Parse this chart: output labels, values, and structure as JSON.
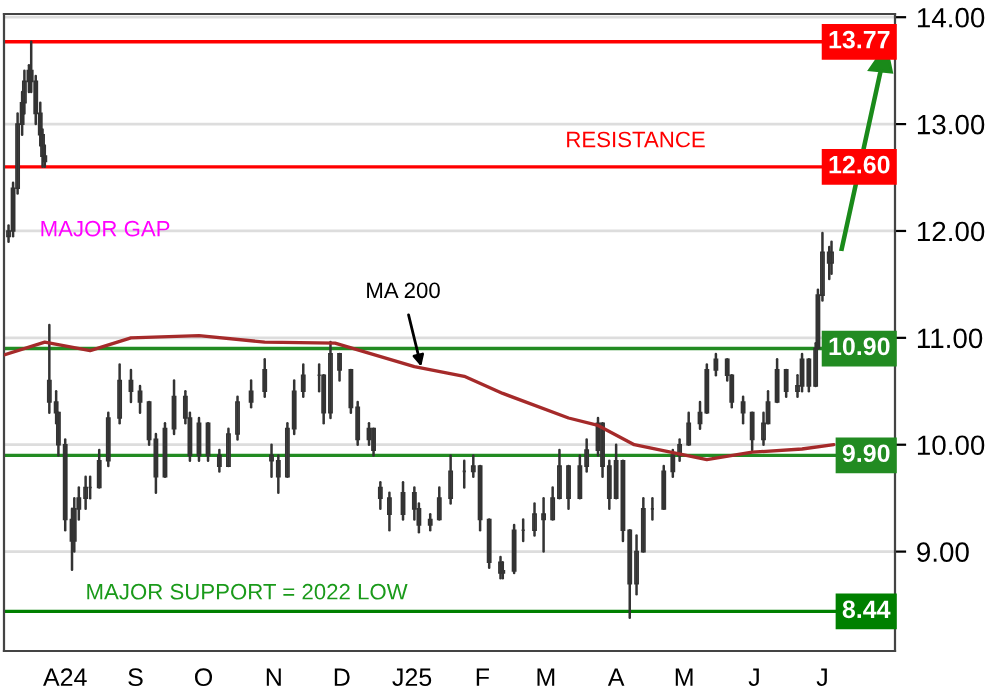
{
  "chart_data": {
    "type": "candlestick",
    "color": "#333333",
    "x": [
      "2024-07-07",
      "2024-07-09",
      "2024-07-11",
      "2024-07-13",
      "2024-07-14",
      "2024-07-16",
      "2024-07-17",
      "2024-07-19",
      "2024-07-21",
      "2024-07-22",
      "2024-07-23",
      "2024-07-25",
      "2024-07-28",
      "2024-07-29",
      "2024-08-01",
      "2024-08-04",
      "2024-08-05",
      "2024-08-07",
      "2024-08-10",
      "2024-08-12",
      "2024-08-16",
      "2024-08-20",
      "2024-08-25",
      "2024-08-30",
      "2024-09-03",
      "2024-09-07",
      "2024-09-10",
      "2024-09-14",
      "2024-09-18",
      "2024-09-23",
      "2024-09-25",
      "2024-09-29",
      "2024-10-03",
      "2024-10-08",
      "2024-10-12",
      "2024-10-16",
      "2024-10-22",
      "2024-10-28",
      "2024-10-31",
      "2024-11-03",
      "2024-11-07",
      "2024-11-10",
      "2024-11-14",
      "2024-11-21",
      "2024-11-23",
      "2024-11-26",
      "2024-11-30",
      "2024-12-05",
      "2024-12-08",
      "2024-12-13",
      "2024-12-15",
      "2024-12-18",
      "2024-12-22",
      "2024-12-28",
      "2025-01-02",
      "2025-01-04",
      "2025-01-09",
      "2025-01-13",
      "2025-01-18",
      "2025-01-24",
      "2025-01-28",
      "2025-01-31",
      "2025-02-04",
      "2025-02-09",
      "2025-02-10",
      "2025-02-15",
      "2025-02-19",
      "2025-02-24",
      "2025-02-28",
      "2025-03-04",
      "2025-03-07",
      "2025-03-11",
      "2025-03-16",
      "2025-03-19",
      "2025-03-24",
      "2025-03-26",
      "2025-03-29",
      "2025-04-01",
      "2025-04-04",
      "2025-04-07",
      "2025-04-10",
      "2025-04-13",
      "2025-04-17",
      "2025-04-22",
      "2025-04-26",
      "2025-04-29",
      "2025-05-03",
      "2025-05-08",
      "2025-05-11",
      "2025-05-15",
      "2025-05-20",
      "2025-05-22",
      "2025-05-27",
      "2025-05-31",
      "2025-06-05",
      "2025-06-07",
      "2025-06-11",
      "2025-06-15",
      "2025-06-20",
      "2025-06-22",
      "2025-06-25",
      "2025-06-28",
      "2025-06-29",
      "2025-07-01",
      "2025-07-04",
      "2025-07-05"
    ],
    "ohlc": [
      [
        11.95,
        12.05,
        11.9,
        12.0
      ],
      [
        12.0,
        12.45,
        11.95,
        12.4
      ],
      [
        12.4,
        13.1,
        12.35,
        13.0
      ],
      [
        13.0,
        13.3,
        12.9,
        13.2
      ],
      [
        13.2,
        13.5,
        13.1,
        13.4
      ],
      [
        13.4,
        13.55,
        13.3,
        13.5
      ],
      [
        13.5,
        13.77,
        13.3,
        13.4
      ],
      [
        13.4,
        13.45,
        13.0,
        13.1
      ],
      [
        13.1,
        13.2,
        12.8,
        12.9
      ],
      [
        12.9,
        12.95,
        12.6,
        12.7
      ],
      [
        12.7,
        12.8,
        12.6,
        12.65
      ],
      [
        10.6,
        11.12,
        10.3,
        10.4
      ],
      [
        10.4,
        10.5,
        10.2,
        10.3
      ],
      [
        10.3,
        10.3,
        9.9,
        10.0
      ],
      [
        10.0,
        10.05,
        9.2,
        9.3
      ],
      [
        9.3,
        9.4,
        8.83,
        9.1
      ],
      [
        9.1,
        9.5,
        9.0,
        9.4
      ],
      [
        9.4,
        9.6,
        9.3,
        9.5
      ],
      [
        9.5,
        9.7,
        9.4,
        9.6
      ],
      [
        9.6,
        9.7,
        9.5,
        9.6
      ],
      [
        9.6,
        9.95,
        9.6,
        9.85
      ],
      [
        9.85,
        10.3,
        9.8,
        10.25
      ],
      [
        10.25,
        10.75,
        10.2,
        10.6
      ],
      [
        10.6,
        10.7,
        10.4,
        10.5
      ],
      [
        10.5,
        10.55,
        10.3,
        10.4
      ],
      [
        10.4,
        10.4,
        10.0,
        10.05
      ],
      [
        10.05,
        10.1,
        9.55,
        9.7
      ],
      [
        9.7,
        10.2,
        9.7,
        10.15
      ],
      [
        10.15,
        10.6,
        10.1,
        10.45
      ],
      [
        10.45,
        10.5,
        10.2,
        10.25
      ],
      [
        10.25,
        10.3,
        9.85,
        9.9
      ],
      [
        9.9,
        10.25,
        9.85,
        10.2
      ],
      [
        10.2,
        10.2,
        9.85,
        9.9
      ],
      [
        9.9,
        9.95,
        9.75,
        9.8
      ],
      [
        9.8,
        10.15,
        9.8,
        10.1
      ],
      [
        10.1,
        10.45,
        10.05,
        10.4
      ],
      [
        10.4,
        10.6,
        10.35,
        10.5
      ],
      [
        10.5,
        10.8,
        10.45,
        10.7
      ],
      [
        9.9,
        10.0,
        9.7,
        9.85
      ],
      [
        9.85,
        9.9,
        9.55,
        9.7
      ],
      [
        9.7,
        10.2,
        9.7,
        10.15
      ],
      [
        10.15,
        10.6,
        10.1,
        10.5
      ],
      [
        10.5,
        10.75,
        10.45,
        10.65
      ],
      [
        10.65,
        10.75,
        10.5,
        10.65
      ],
      [
        10.65,
        10.65,
        10.2,
        10.3
      ],
      [
        10.3,
        10.96,
        10.25,
        10.85
      ],
      [
        10.85,
        10.85,
        10.6,
        10.7
      ],
      [
        10.7,
        10.7,
        10.3,
        10.35
      ],
      [
        10.35,
        10.4,
        10.0,
        10.05
      ],
      [
        10.05,
        10.2,
        10.0,
        10.15
      ],
      [
        10.15,
        10.15,
        9.9,
        9.95
      ],
      [
        9.6,
        9.65,
        9.4,
        9.5
      ],
      [
        9.5,
        9.55,
        9.2,
        9.35
      ],
      [
        9.35,
        9.65,
        9.3,
        9.55
      ],
      [
        9.55,
        9.6,
        9.3,
        9.4
      ],
      [
        9.4,
        9.45,
        9.18,
        9.25
      ],
      [
        9.25,
        9.35,
        9.2,
        9.3
      ],
      [
        9.3,
        9.6,
        9.3,
        9.5
      ],
      [
        9.5,
        9.9,
        9.45,
        9.75
      ],
      [
        9.75,
        9.85,
        9.6,
        9.75
      ],
      [
        9.75,
        9.9,
        9.7,
        9.8
      ],
      [
        9.8,
        9.8,
        9.2,
        9.3
      ],
      [
        9.3,
        9.3,
        8.85,
        8.9
      ],
      [
        8.9,
        8.95,
        8.75,
        8.8
      ],
      [
        8.8,
        8.9,
        8.75,
        8.82
      ],
      [
        8.82,
        9.25,
        8.8,
        9.2
      ],
      [
        9.2,
        9.3,
        9.1,
        9.2
      ],
      [
        9.2,
        9.45,
        9.15,
        9.35
      ],
      [
        9.35,
        9.5,
        9.0,
        9.3
      ],
      [
        9.3,
        9.6,
        9.3,
        9.5
      ],
      [
        9.5,
        9.95,
        9.5,
        9.8
      ],
      [
        9.8,
        9.8,
        9.4,
        9.5
      ],
      [
        9.5,
        9.9,
        9.5,
        9.8
      ],
      [
        9.8,
        10.05,
        9.75,
        9.95
      ],
      [
        9.95,
        10.25,
        9.9,
        10.2
      ],
      [
        10.2,
        10.2,
        9.7,
        9.8
      ],
      [
        9.8,
        9.85,
        9.4,
        9.5
      ],
      [
        9.5,
        10.0,
        9.5,
        9.85
      ],
      [
        9.85,
        9.85,
        9.1,
        9.2
      ],
      [
        9.2,
        9.2,
        8.38,
        8.7
      ],
      [
        8.7,
        9.15,
        8.6,
        9.0
      ],
      [
        9.0,
        9.5,
        9.0,
        9.4
      ],
      [
        9.4,
        9.5,
        9.3,
        9.4
      ],
      [
        9.4,
        9.8,
        9.4,
        9.75
      ],
      [
        9.75,
        9.95,
        9.7,
        9.9
      ],
      [
        9.9,
        10.05,
        9.85,
        10.0
      ],
      [
        10.0,
        10.3,
        10.0,
        10.2
      ],
      [
        10.2,
        10.4,
        10.15,
        10.3
      ],
      [
        10.3,
        10.75,
        10.3,
        10.7
      ],
      [
        10.7,
        10.85,
        10.65,
        10.8
      ],
      [
        10.8,
        10.8,
        10.6,
        10.65
      ],
      [
        10.65,
        10.65,
        10.35,
        10.4
      ],
      [
        10.4,
        10.45,
        10.2,
        10.3
      ],
      [
        10.3,
        10.3,
        9.95,
        10.05
      ],
      [
        10.05,
        10.3,
        10.0,
        10.2
      ],
      [
        10.2,
        10.5,
        10.2,
        10.4
      ],
      [
        10.4,
        10.8,
        10.4,
        10.7
      ],
      [
        10.7,
        10.7,
        10.45,
        10.5
      ],
      [
        10.5,
        10.65,
        10.45,
        10.55
      ],
      [
        10.55,
        10.85,
        10.5,
        10.8
      ],
      [
        10.8,
        10.8,
        10.5,
        10.55
      ],
      [
        10.55,
        10.95,
        10.55,
        10.9
      ],
      [
        10.9,
        11.45,
        10.9,
        11.4
      ],
      [
        11.4,
        11.98,
        11.35,
        11.8
      ],
      [
        11.8,
        11.85,
        11.55,
        11.7
      ],
      [
        11.7,
        11.9,
        11.6,
        11.8
      ]
    ],
    "series": [
      {
        "type": "line",
        "color": "#a52a2a",
        "x": [
          "2024-07-05",
          "2024-07-23",
          "2024-08-12",
          "2024-08-30",
          "2024-09-29",
          "2024-10-28",
          "2024-11-28",
          "2025-01-02",
          "2025-01-24",
          "2025-02-10",
          "2025-03-11",
          "2025-03-24",
          "2025-04-09",
          "2025-05-11",
          "2025-05-31",
          "2025-06-22",
          "2025-07-06"
        ],
        "values": [
          10.84,
          10.96,
          10.88,
          11.0,
          11.02,
          10.96,
          10.95,
          10.73,
          10.64,
          10.48,
          10.25,
          10.18,
          10.0,
          9.86,
          9.93,
          9.96,
          10.0
        ]
      }
    ],
    "xlim": [
      "2024-07-05",
      "2025-08-02"
    ],
    "xticks": [
      {
        "value": "2024-08-01",
        "label": "A24"
      },
      {
        "value": "2024-09-01",
        "label": "S"
      },
      {
        "value": "2024-10-01",
        "label": "O"
      },
      {
        "value": "2024-11-01",
        "label": "N"
      },
      {
        "value": "2024-12-01",
        "label": "D"
      },
      {
        "value": "2025-01-01",
        "label": "J25"
      },
      {
        "value": "2025-02-01",
        "label": "F"
      },
      {
        "value": "2025-03-01",
        "label": "M"
      },
      {
        "value": "2025-04-01",
        "label": "A"
      },
      {
        "value": "2025-05-01",
        "label": "M"
      },
      {
        "value": "2025-06-01",
        "label": "J"
      },
      {
        "value": "2025-07-01",
        "label": "J"
      }
    ],
    "ylim": [
      8.07,
      14.03
    ],
    "yticks": [
      {
        "value": 9,
        "label": "9.00"
      },
      {
        "value": 10,
        "label": "10.00"
      },
      {
        "value": 11,
        "label": "11.00"
      },
      {
        "value": 12,
        "label": "12.00"
      },
      {
        "value": 13,
        "label": "13.00"
      },
      {
        "value": 14,
        "label": "14.00"
      }
    ],
    "grid": "y",
    "ref_lines": [
      {
        "axis": "y",
        "value": 13.77,
        "label": "13.77",
        "color": "#ff0000"
      },
      {
        "axis": "y",
        "value": 12.6,
        "label": "12.60",
        "color": "#ff0000"
      },
      {
        "axis": "y",
        "value": 10.9,
        "label": "10.90",
        "color": "#228b22"
      },
      {
        "axis": "y",
        "value": 9.9,
        "label": "9.90",
        "color": "#228b22"
      },
      {
        "axis": "y",
        "value": 8.44,
        "label": "8.44",
        "color": "#008000"
      }
    ],
    "annotations": [
      "RESISTANCE",
      "MAJOR GAP",
      {
        "text": "MA 200",
        "x": "2025-01-05",
        "y": 10.73
      },
      {
        "text": "MAJOR SUPPORT = 2022 LOW",
        "x": "2024-10-20",
        "y": 8.44
      }
    ]
  }
}
